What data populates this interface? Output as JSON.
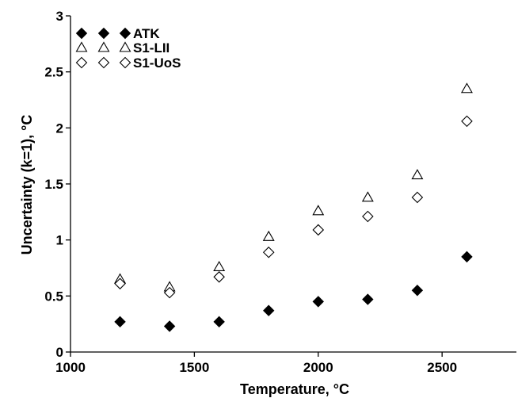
{
  "chart_data": {
    "type": "scatter",
    "title": "",
    "xlabel": "Temperature, °C",
    "ylabel": "Uncertainty (k=1), °C",
    "xlim": [
      1000,
      2800
    ],
    "ylim": [
      0,
      3
    ],
    "x_ticks": [
      1000,
      1500,
      2000,
      2500
    ],
    "x_tick_labels": [
      "1000",
      "1500",
      "2000",
      "2500"
    ],
    "y_ticks": [
      0,
      0.5,
      1,
      1.5,
      2,
      2.5,
      3
    ],
    "y_tick_labels": [
      "0",
      "0.5",
      "1",
      "1.5",
      "2",
      "2.5",
      "3"
    ],
    "grid": false,
    "legend_position": "top-left",
    "series": [
      {
        "name": "ATK",
        "marker": "filled-diamond",
        "color": "#000000",
        "x": [
          1200,
          1400,
          1600,
          1800,
          2000,
          2200,
          2400,
          2600
        ],
        "y": [
          0.27,
          0.23,
          0.27,
          0.37,
          0.45,
          0.47,
          0.55,
          0.85
        ]
      },
      {
        "name": "S1-LII",
        "marker": "open-triangle",
        "color": "#000000",
        "x": [
          1200,
          1400,
          1600,
          1800,
          2000,
          2200,
          2400,
          2600
        ],
        "y": [
          0.65,
          0.58,
          0.76,
          1.03,
          1.26,
          1.38,
          1.58,
          2.35
        ]
      },
      {
        "name": "S1-UoS",
        "marker": "open-diamond",
        "color": "#000000",
        "x": [
          1200,
          1400,
          1600,
          1800,
          2000,
          2200,
          2400,
          2600
        ],
        "y": [
          0.61,
          0.53,
          0.67,
          0.89,
          1.09,
          1.21,
          1.38,
          2.06
        ]
      }
    ]
  }
}
